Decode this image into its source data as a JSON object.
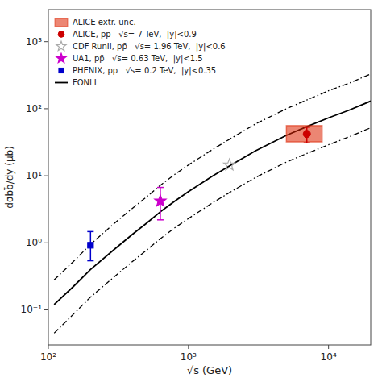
{
  "chart_data": {
    "type": "line",
    "xlabel": "√s (GeV)",
    "ylabel": "dσbb̄/dy (μb)",
    "log": true,
    "grid": false,
    "legend": "upper left",
    "xlim": [
      100,
      20000
    ],
    "ylim": [
      0.03,
      3000
    ],
    "xticks": [
      {
        "value": 100,
        "label": "10²"
      },
      {
        "value": 1000,
        "label": "10³"
      },
      {
        "value": 10000,
        "label": "10⁴"
      }
    ],
    "yticks": [
      {
        "value": 0.1,
        "label": "10⁻¹"
      },
      {
        "value": 1,
        "label": "10⁰"
      },
      {
        "value": 10,
        "label": "10¹"
      },
      {
        "value": 100,
        "label": "10²"
      },
      {
        "value": 1000,
        "label": "10³"
      }
    ],
    "x": [
      110,
      150,
      200,
      300,
      400,
      500,
      630,
      800,
      1000,
      1500,
      1960,
      3000,
      5000,
      7000,
      10000,
      14000,
      20000
    ],
    "series": [
      {
        "name": "ALICE extr. unc.",
        "type": "rect",
        "color": "#dd2200",
        "x_range": [
          5000,
          9000
        ],
        "y_range": [
          32.0,
          56.0
        ]
      },
      {
        "name": "ALICE, pp   √s= 7 TeV,  |y|<0.9",
        "type": "scatter",
        "marker": "circle",
        "color": "#cc0000",
        "x": [
          7000
        ],
        "values": [
          42.0
        ],
        "error_low": [
          11.0
        ],
        "error_high": [
          11.0
        ]
      },
      {
        "name": "CDF RunII, pp̄   √s= 1.96 TeV,  |y|<0.6",
        "type": "scatter",
        "marker": "star_open",
        "color": "#aaaaaa",
        "x": [
          1960
        ],
        "values": [
          14.5
        ]
      },
      {
        "name": "UA1, pp̄   √s= 0.63 TeV,  |y|<1.5",
        "type": "scatter",
        "marker": "star",
        "color": "#cc00cc",
        "x": [
          630
        ],
        "values": [
          4.2
        ],
        "error_low": [
          2.0
        ],
        "error_high": [
          2.5
        ]
      },
      {
        "name": "PHENIX, pp   √s= 0.2 TeV,  |y|<0.35",
        "type": "scatter",
        "marker": "square",
        "color": "#0000cc",
        "x": [
          200
        ],
        "values": [
          0.92
        ],
        "error_low": [
          0.38
        ],
        "error_high": [
          0.55
        ]
      },
      {
        "name": "FONLL",
        "type": "line",
        "color": "#000000",
        "line_style": "solid",
        "values": [
          0.12,
          0.22,
          0.4,
          0.82,
          1.35,
          1.95,
          2.9,
          4.2,
          5.8,
          10.0,
          14.0,
          23.5,
          40.0,
          54.0,
          73.0,
          95.0,
          130.0
        ]
      },
      {
        "type": "line",
        "color": "#000000",
        "line_style": "dashdot",
        "values": [
          0.28,
          0.52,
          0.95,
          2.0,
          3.3,
          4.8,
          7.2,
          10.5,
          14.5,
          25.0,
          35.0,
          59.0,
          100.0,
          135.0,
          185.0,
          240.0,
          330.0
        ]
      },
      {
        "type": "line",
        "color": "#000000",
        "line_style": "dashdot",
        "values": [
          0.045,
          0.085,
          0.155,
          0.32,
          0.53,
          0.77,
          1.15,
          1.68,
          2.3,
          4.0,
          5.6,
          9.4,
          16.0,
          21.5,
          29.0,
          38.0,
          52.0
        ]
      }
    ]
  }
}
